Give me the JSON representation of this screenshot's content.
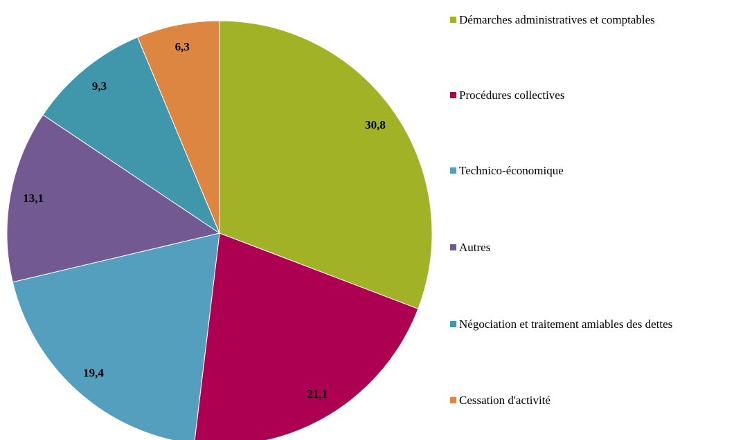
{
  "chart_data": {
    "type": "pie",
    "categories": [
      "Démarches administratives et comptables",
      "Procédures collectives",
      "Technico-économique",
      "Autres",
      "Négociation et traitement amiables des dettes",
      "Cessation d'activité"
    ],
    "values": [
      30.8,
      21.1,
      19.4,
      13.1,
      9.3,
      6.3
    ],
    "value_labels": [
      "30,8",
      "21,1",
      "19,4",
      "13,1",
      "9,3",
      "6,3"
    ],
    "colors": [
      "#a2b227",
      "#ae0052",
      "#549fbe",
      "#735991",
      "#4097ab",
      "#dc8642"
    ],
    "legend": "right"
  }
}
